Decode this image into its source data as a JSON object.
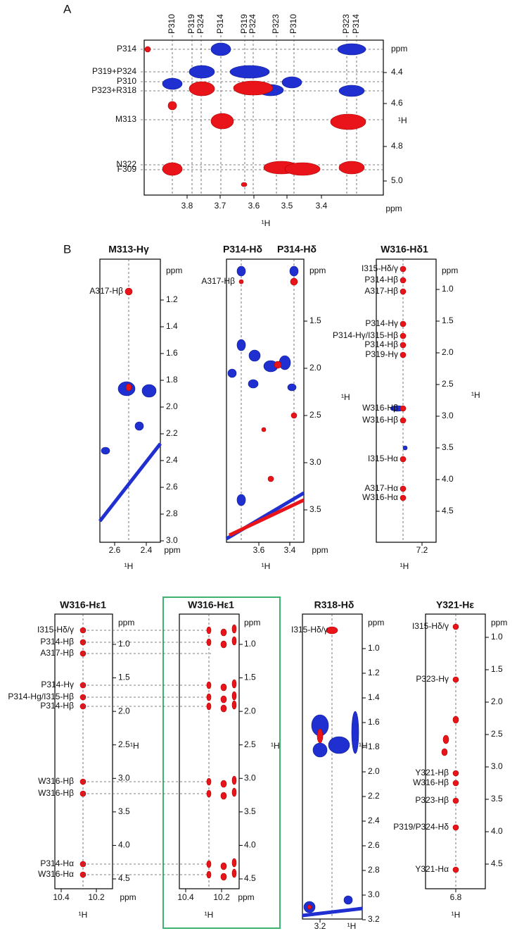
{
  "panel_a": {
    "label": "A",
    "top_labels": [
      "P310",
      "P319",
      "P324",
      "P314",
      "P319",
      "P324",
      "P323",
      "P310",
      "P323",
      "P314"
    ],
    "left_labels": [
      "P314",
      "P319+P324",
      "P310",
      "P323+R318",
      "M313",
      "N322",
      "F309"
    ],
    "y_ticks": [
      "ppm",
      "4.4",
      "4.6",
      "4.8",
      "5.0"
    ],
    "y_axis_label": "¹H",
    "x_ticks": [
      "3.8",
      "3.7",
      "3.6",
      "3.5",
      "3.4"
    ],
    "x_unit": "ppm",
    "x_axis_label": "¹H"
  },
  "panel_b": {
    "label": "B",
    "spectra": [
      {
        "titles": [
          "M313-Hγ"
        ],
        "peak_labels": [
          "A317-Hβ"
        ],
        "y_ticks": [
          "ppm",
          "1.2",
          "1.4",
          "1.6",
          "1.8",
          "2.0",
          "2.2",
          "2.4",
          "2.6",
          "2.8",
          "3.0"
        ],
        "x_ticks": [
          "2.6",
          "2.4"
        ],
        "x_unit": "ppm",
        "x_axis_label": "¹H"
      },
      {
        "titles": [
          "P314-Hδ",
          "P314-Hδ"
        ],
        "peak_labels": [
          "A317-Hβ"
        ],
        "y_ticks": [
          "ppm",
          "1.5",
          "2.0",
          "2.5",
          "3.0",
          "3.5"
        ],
        "y_axis_label": "¹H",
        "x_ticks": [
          "3.6",
          "3.4"
        ],
        "x_unit": "ppm",
        "x_axis_label": "¹H"
      },
      {
        "titles": [
          "W316-Hδ1"
        ],
        "peak_labels": [
          "I315-Hδ/γ",
          "P314-Hβ",
          "A317-Hβ",
          "P314-Hγ",
          "P314-Hγ/I315-Hβ",
          "P314-Hβ",
          "P319-Hγ",
          "W316-Hβ",
          "W316-Hβ",
          "I315-Hα",
          "A317-Hα",
          "W316-Hα"
        ],
        "y_ticks": [
          "ppm",
          "1.0",
          "1.5",
          "2.0",
          "2.5",
          "3.0",
          "3.5",
          "4.0",
          "4.5"
        ],
        "y_axis_label": "¹H",
        "x_ticks": [
          "7.2"
        ],
        "x_axis_label": "¹H"
      },
      {
        "titles": [
          "W316-Hε1"
        ],
        "peak_labels": [
          "I315-Hδ/γ",
          "P314-Hβ",
          "A317-Hβ",
          "P314-Hγ",
          "P314-Hg/I315-Hβ",
          "P314-Hβ",
          "W316-Hβ",
          "W316-Hβ",
          "P314-Hα",
          "W316-Hα"
        ],
        "y_ticks": [
          "ppm",
          "1.0",
          "1.5",
          "2.0",
          "2.5",
          "3.0",
          "3.5",
          "4.0",
          "4.5"
        ],
        "y_axis_label": "¹H",
        "x_ticks": [
          "10.4",
          "10.2"
        ],
        "x_unit": "ppm",
        "x_axis_label": "¹H"
      },
      {
        "titles": [
          "W316-Hε1"
        ],
        "peak_labels": [],
        "y_ticks": [
          "ppm",
          "1.0",
          "1.5",
          "2.0",
          "2.5",
          "3.0",
          "3.5",
          "4.0",
          "4.5"
        ],
        "y_axis_label": "¹H",
        "x_ticks": [
          "10.4",
          "10.2"
        ],
        "x_unit": "ppm",
        "x_axis_label": "¹H"
      },
      {
        "titles": [
          "R318-Hδ"
        ],
        "peak_labels": [
          "I315-Hδ/γ"
        ],
        "y_ticks": [
          "ppm",
          "1.0",
          "1.2",
          "1.4",
          "1.6",
          "1.8",
          "2.0",
          "2.2",
          "2.4",
          "2.6",
          "2.8",
          "3.0",
          "3.2"
        ],
        "y_axis_label": "¹H",
        "x_ticks": [
          "3.2"
        ],
        "x_axis_label": "¹H"
      },
      {
        "titles": [
          "Y321-Hε"
        ],
        "peak_labels": [
          "I315-Hδ/γ",
          "P323-Hγ",
          "Y321-Hβ",
          "W316-Hβ",
          "P323-Hβ",
          "P319/P324-Hδ",
          "Y321-Hα"
        ],
        "y_ticks": [
          "ppm",
          "1.0",
          "1.5",
          "2.0",
          "2.5",
          "3.0",
          "3.5",
          "4.0",
          "4.5"
        ],
        "x_ticks": [
          "6.8"
        ],
        "x_axis_label": "¹H"
      }
    ]
  }
}
